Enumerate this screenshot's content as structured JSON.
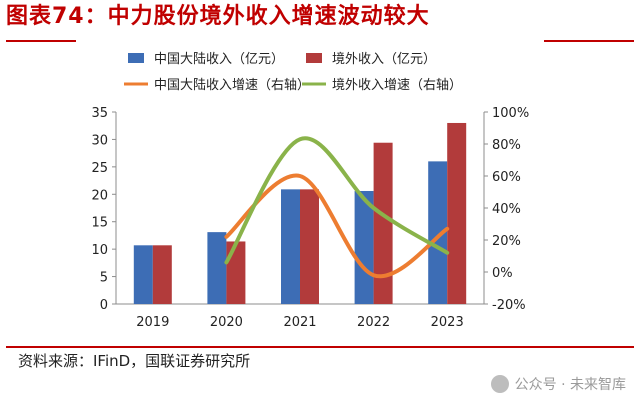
{
  "header": {
    "title": "图表74：中力股份境外收入增速波动较大"
  },
  "footer": {
    "source": "资料来源：IFinD，国联证券研究所",
    "watermark": "公众号 · 未来智库"
  },
  "chart_data": {
    "type": "bar",
    "categories": [
      "2019",
      "2020",
      "2021",
      "2022",
      "2023"
    ],
    "series": [
      {
        "name": "中国大陆收入（亿元）",
        "kind": "bar",
        "axis": "left",
        "color": "#3d6db5",
        "values": [
          10.7,
          13.1,
          20.9,
          20.6,
          26.0
        ]
      },
      {
        "name": "境外收入（亿元）",
        "kind": "bar",
        "axis": "left",
        "color": "#b23b3b",
        "values": [
          10.7,
          11.4,
          20.9,
          29.4,
          33.0
        ]
      },
      {
        "name": "中国大陆收入增速（右轴）",
        "kind": "line",
        "axis": "right",
        "color": "#ed7d31",
        "values": [
          null,
          22,
          60,
          -2,
          27
        ]
      },
      {
        "name": "境外收入增速（右轴）",
        "kind": "line",
        "axis": "right",
        "color": "#8ab34a",
        "values": [
          null,
          6,
          83,
          40,
          12
        ]
      }
    ],
    "y_left": {
      "min": 0,
      "max": 35,
      "ticks": [
        "0",
        "5",
        "10",
        "15",
        "20",
        "25",
        "30",
        "35"
      ]
    },
    "y_right": {
      "min": -20,
      "max": 100,
      "ticks": [
        "-20%",
        "0%",
        "20%",
        "40%",
        "60%",
        "80%",
        "100%"
      ]
    },
    "grid": false,
    "legend": "top"
  }
}
